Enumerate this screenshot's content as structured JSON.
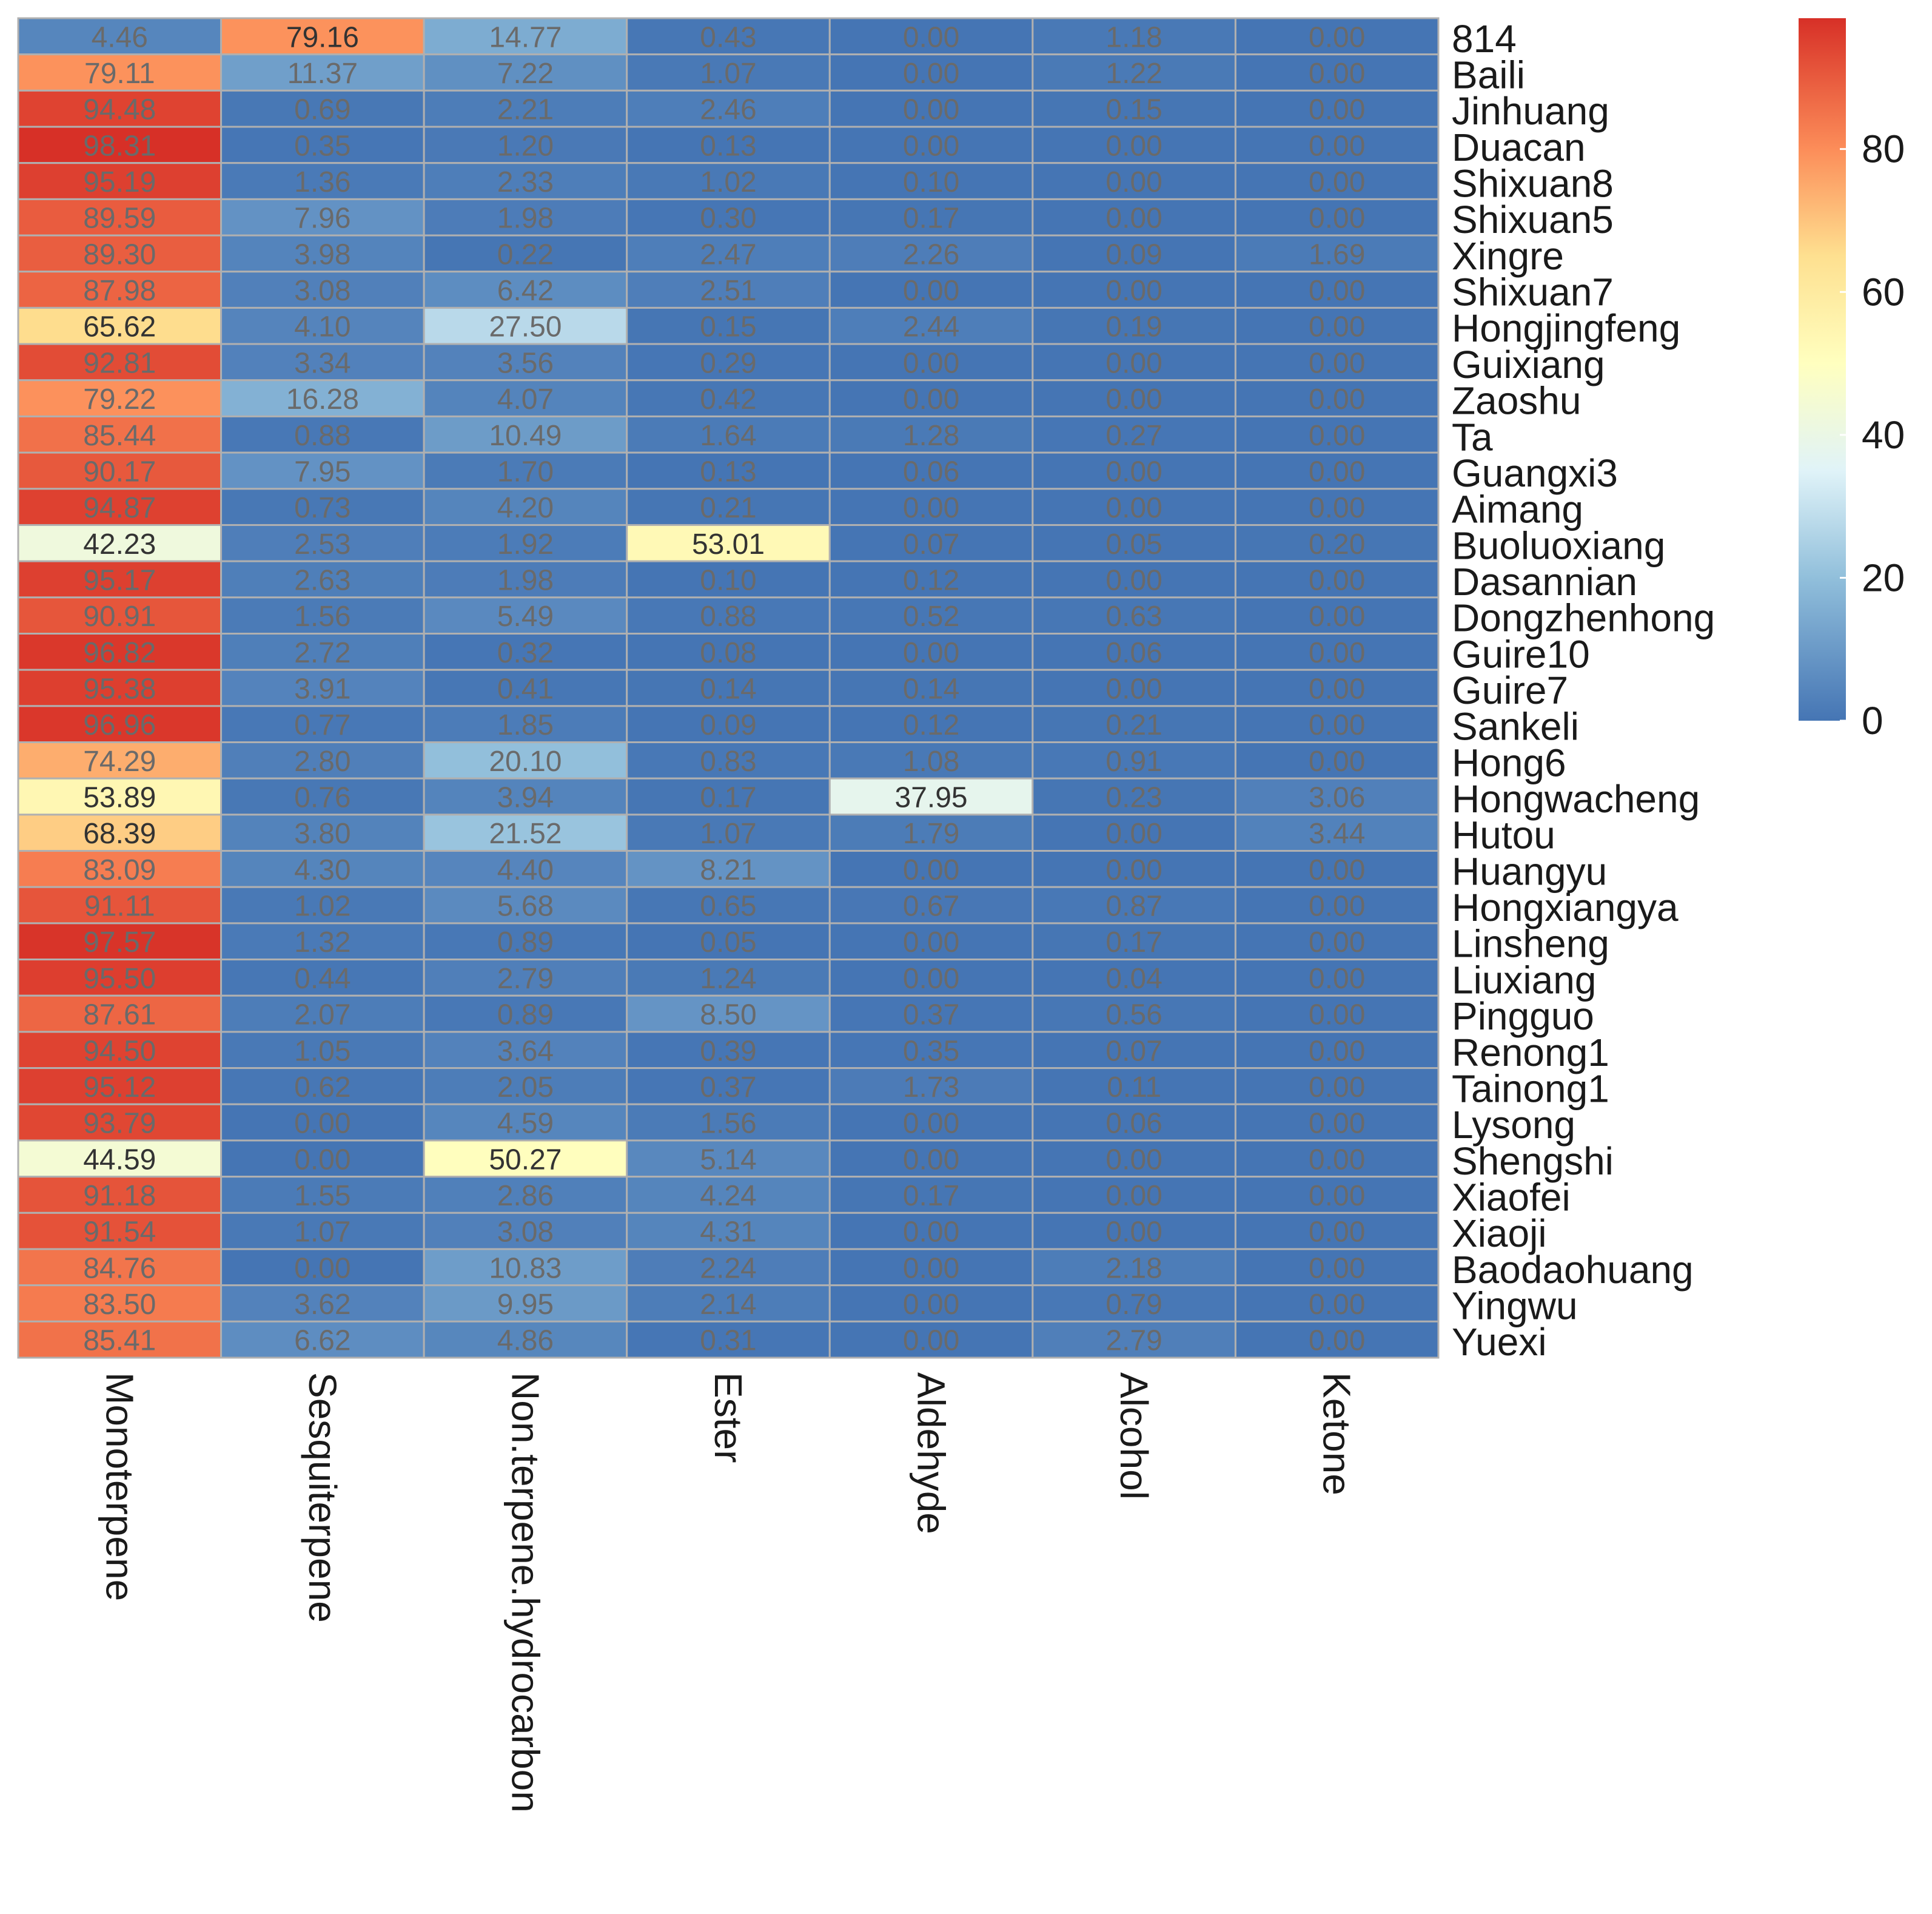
{
  "chart_data": {
    "type": "heatmap",
    "title": "",
    "xlabel": "",
    "ylabel": "",
    "columns": [
      "Monoterpene",
      "Sesquiterpene",
      "Non.terpene.hydrocarbon",
      "Ester",
      "Aldehyde",
      "Alcohol",
      "Ketone"
    ],
    "rows": [
      "814",
      "Baili",
      "Jinhuang",
      "Duacan",
      "Shixuan8",
      "Shixuan5",
      "Xingre",
      "Shixuan7",
      "Hongjingfeng",
      "Guixiang",
      "Zaoshu",
      "Ta",
      "Guangxi3",
      "Aimang",
      "Buoluoxiang",
      "Dasannian",
      "Dongzhenhong",
      "Guire10",
      "Guire7",
      "Sankeli",
      "Hong6",
      "Hongwacheng",
      "Hutou",
      "Huangyu",
      "Hongxiangya",
      "Linsheng",
      "Liuxiang",
      "Pingguo",
      "Renong1",
      "Tainong1",
      "Lysong",
      "Shengshi",
      "Xiaofei",
      "Xiaoji",
      "Baodaohuang",
      "Yingwu",
      "Yuexi"
    ],
    "values": [
      [
        4.46,
        79.16,
        14.77,
        0.43,
        0.0,
        1.18,
        0.0
      ],
      [
        79.11,
        11.37,
        7.22,
        1.07,
        0.0,
        1.22,
        0.0
      ],
      [
        94.48,
        0.69,
        2.21,
        2.46,
        0.0,
        0.15,
        0.0
      ],
      [
        98.31,
        0.35,
        1.2,
        0.13,
        0.0,
        0.0,
        0.0
      ],
      [
        95.19,
        1.36,
        2.33,
        1.02,
        0.1,
        0.0,
        0.0
      ],
      [
        89.59,
        7.96,
        1.98,
        0.3,
        0.17,
        0.0,
        0.0
      ],
      [
        89.3,
        3.98,
        0.22,
        2.47,
        2.26,
        0.09,
        1.69
      ],
      [
        87.98,
        3.08,
        6.42,
        2.51,
        0.0,
        0.0,
        0.0
      ],
      [
        65.62,
        4.1,
        27.5,
        0.15,
        2.44,
        0.19,
        0.0
      ],
      [
        92.81,
        3.34,
        3.56,
        0.29,
        0.0,
        0.0,
        0.0
      ],
      [
        79.22,
        16.28,
        4.07,
        0.42,
        0.0,
        0.0,
        0.0
      ],
      [
        85.44,
        0.88,
        10.49,
        1.64,
        1.28,
        0.27,
        0.0
      ],
      [
        90.17,
        7.95,
        1.7,
        0.13,
        0.06,
        0.0,
        0.0
      ],
      [
        94.87,
        0.73,
        4.2,
        0.21,
        0.0,
        0.0,
        0.0
      ],
      [
        42.23,
        2.53,
        1.92,
        53.01,
        0.07,
        0.05,
        0.2
      ],
      [
        95.17,
        2.63,
        1.98,
        0.1,
        0.12,
        0.0,
        0.0
      ],
      [
        90.91,
        1.56,
        5.49,
        0.88,
        0.52,
        0.63,
        0.0
      ],
      [
        96.82,
        2.72,
        0.32,
        0.08,
        0.0,
        0.06,
        0.0
      ],
      [
        95.38,
        3.91,
        0.41,
        0.14,
        0.14,
        0.0,
        0.0
      ],
      [
        96.96,
        0.77,
        1.85,
        0.09,
        0.12,
        0.21,
        0.0
      ],
      [
        74.29,
        2.8,
        20.1,
        0.83,
        1.08,
        0.91,
        0.0
      ],
      [
        53.89,
        0.76,
        3.94,
        0.17,
        37.95,
        0.23,
        3.06
      ],
      [
        68.39,
        3.8,
        21.52,
        1.07,
        1.79,
        0.0,
        3.44
      ],
      [
        83.09,
        4.3,
        4.4,
        8.21,
        0.0,
        0.0,
        0.0
      ],
      [
        91.11,
        1.02,
        5.68,
        0.65,
        0.67,
        0.87,
        0.0
      ],
      [
        97.57,
        1.32,
        0.89,
        0.05,
        0.0,
        0.17,
        0.0
      ],
      [
        95.5,
        0.44,
        2.79,
        1.24,
        0.0,
        0.04,
        0.0
      ],
      [
        87.61,
        2.07,
        0.89,
        8.5,
        0.37,
        0.56,
        0.0
      ],
      [
        94.5,
        1.05,
        3.64,
        0.39,
        0.35,
        0.07,
        0.0
      ],
      [
        95.12,
        0.62,
        2.05,
        0.37,
        1.73,
        0.11,
        0.0
      ],
      [
        93.79,
        0.0,
        4.59,
        1.56,
        0.0,
        0.06,
        0.0
      ],
      [
        44.59,
        0.0,
        50.27,
        5.14,
        0.0,
        0.0,
        0.0
      ],
      [
        91.18,
        1.55,
        2.86,
        4.24,
        0.17,
        0.0,
        0.0
      ],
      [
        91.54,
        1.07,
        3.08,
        4.31,
        0.0,
        0.0,
        0.0
      ],
      [
        84.76,
        0.0,
        10.83,
        2.24,
        0.0,
        2.18,
        0.0
      ],
      [
        83.5,
        3.62,
        9.95,
        2.14,
        0.0,
        0.79,
        0.0
      ],
      [
        85.41,
        6.62,
        4.86,
        0.31,
        0.0,
        2.79,
        0.0
      ]
    ],
    "value_labels": [
      [
        "4.46",
        "79.16",
        "14.77",
        "0.43",
        "0.00",
        "1.18",
        "0.00"
      ],
      [
        "79.11",
        "11.37",
        "7.22",
        "1.07",
        "0.00",
        "1.22",
        "0.00"
      ],
      [
        "94.48",
        "0.69",
        "2.21",
        "2.46",
        "0.00",
        "0.15",
        "0.00"
      ],
      [
        "98.31",
        "0.35",
        "1.20",
        "0.13",
        "0.00",
        "0.00",
        "0.00"
      ],
      [
        "95.19",
        "1.36",
        "2.33",
        "1.02",
        "0.10",
        "0.00",
        "0.00"
      ],
      [
        "89.59",
        "7.96",
        "1.98",
        "0.30",
        "0.17",
        "0.00",
        "0.00"
      ],
      [
        "89.30",
        "3.98",
        "0.22",
        "2.47",
        "2.26",
        "0.09",
        "1.69"
      ],
      [
        "87.98",
        "3.08",
        "6.42",
        "2.51",
        "0.00",
        "0.00",
        "0.00"
      ],
      [
        "65.62",
        "4.10",
        "27.50",
        "0.15",
        "2.44",
        "0.19",
        "0.00"
      ],
      [
        "92.81",
        "3.34",
        "3.56",
        "0.29",
        "0.00",
        "0.00",
        "0.00"
      ],
      [
        "79.22",
        "16.28",
        "4.07",
        "0.42",
        "0.00",
        "0.00",
        "0.00"
      ],
      [
        "85.44",
        "0.88",
        "10.49",
        "1.64",
        "1.28",
        "0.27",
        "0.00"
      ],
      [
        "90.17",
        "7.95",
        "1.70",
        "0.13",
        "0.06",
        "0.00",
        "0.00"
      ],
      [
        "94.87",
        "0.73",
        "4.20",
        "0.21",
        "0.00",
        "0.00",
        "0.00"
      ],
      [
        "42.23",
        "2.53",
        "1.92",
        "53.01",
        "0.07",
        "0.05",
        "0.20"
      ],
      [
        "95.17",
        "2.63",
        "1.98",
        "0.10",
        "0.12",
        "0.00",
        "0.00"
      ],
      [
        "90.91",
        "1.56",
        "5.49",
        "0.88",
        "0.52",
        "0.63",
        "0.00"
      ],
      [
        "96.82",
        "2.72",
        "0.32",
        "0.08",
        "0.00",
        "0.06",
        "0.00"
      ],
      [
        "95.38",
        "3.91",
        "0.41",
        "0.14",
        "0.14",
        "0.00",
        "0.00"
      ],
      [
        "96.96",
        "0.77",
        "1.85",
        "0.09",
        "0.12",
        "0.21",
        "0.00"
      ],
      [
        "74.29",
        "2.80",
        "20.10",
        "0.83",
        "1.08",
        "0.91",
        "0.00"
      ],
      [
        "53.89",
        "0.76",
        "3.94",
        "0.17",
        "37.95",
        "0.23",
        "3.06"
      ],
      [
        "68.39",
        "3.80",
        "21.52",
        "1.07",
        "1.79",
        "0.00",
        "3.44"
      ],
      [
        "83.09",
        "4.30",
        "4.40",
        "8.21",
        "0.00",
        "0.00",
        "0.00"
      ],
      [
        "91.11",
        "1.02",
        "5.68",
        "0.65",
        "0.67",
        "0.87",
        "0.00"
      ],
      [
        "97.57",
        "1.32",
        "0.89",
        "0.05",
        "0.00",
        "0.17",
        "0.00"
      ],
      [
        "95.50",
        "0.44",
        "2.79",
        "1.24",
        "0.00",
        "0.04",
        "0.00"
      ],
      [
        "87.61",
        "2.07",
        "0.89",
        "8.50",
        "0.37",
        "0.56",
        "0.00"
      ],
      [
        "94.50",
        "1.05",
        "3.64",
        "0.39",
        "0.35",
        "0.07",
        "0.00"
      ],
      [
        "95.12",
        "0.62",
        "2.05",
        "0.37",
        "1.73",
        "0.11",
        "0.00"
      ],
      [
        "93.79",
        "0.00",
        "4.59",
        "1.56",
        "0.00",
        "0.06",
        "0.00"
      ],
      [
        "44.59",
        "0.00",
        "50.27",
        "5.14",
        "0.00",
        "0.00",
        "0.00"
      ],
      [
        "91.18",
        "1.55",
        "2.86",
        "4.24",
        "0.17",
        "0.00",
        "0.00"
      ],
      [
        "91.54",
        "1.07",
        "3.08",
        "4.31",
        "0.00",
        "0.00",
        "0.00"
      ],
      [
        "84.76",
        "0.00",
        "10.83",
        "2.24",
        "0.00",
        "2.18",
        "0.00"
      ],
      [
        "83.50",
        "3.62",
        "9.95",
        "2.14",
        "0.00",
        "0.79",
        "0.00"
      ],
      [
        "85.41",
        "6.62",
        "4.86",
        "0.31",
        "0.00",
        "2.79",
        "0.00"
      ]
    ],
    "color_scale": {
      "range": [
        0,
        98.31
      ],
      "ticks": [
        "0",
        "20",
        "40",
        "60",
        "80"
      ],
      "stops": [
        {
          "value": 0,
          "color": "#4575b4"
        },
        {
          "value": 20,
          "color": "#91bfdb"
        },
        {
          "value": 35,
          "color": "#e0f3f8"
        },
        {
          "value": 50,
          "color": "#ffffbf"
        },
        {
          "value": 65,
          "color": "#fee090"
        },
        {
          "value": 80,
          "color": "#fc8d59"
        },
        {
          "value": 98.31,
          "color": "#d73027"
        }
      ]
    },
    "legend_placement": "right",
    "grid": true,
    "cell_border_color": "#b0b0b0",
    "label_color_dark": "#333333",
    "label_color_light": "#6a6a6a"
  }
}
